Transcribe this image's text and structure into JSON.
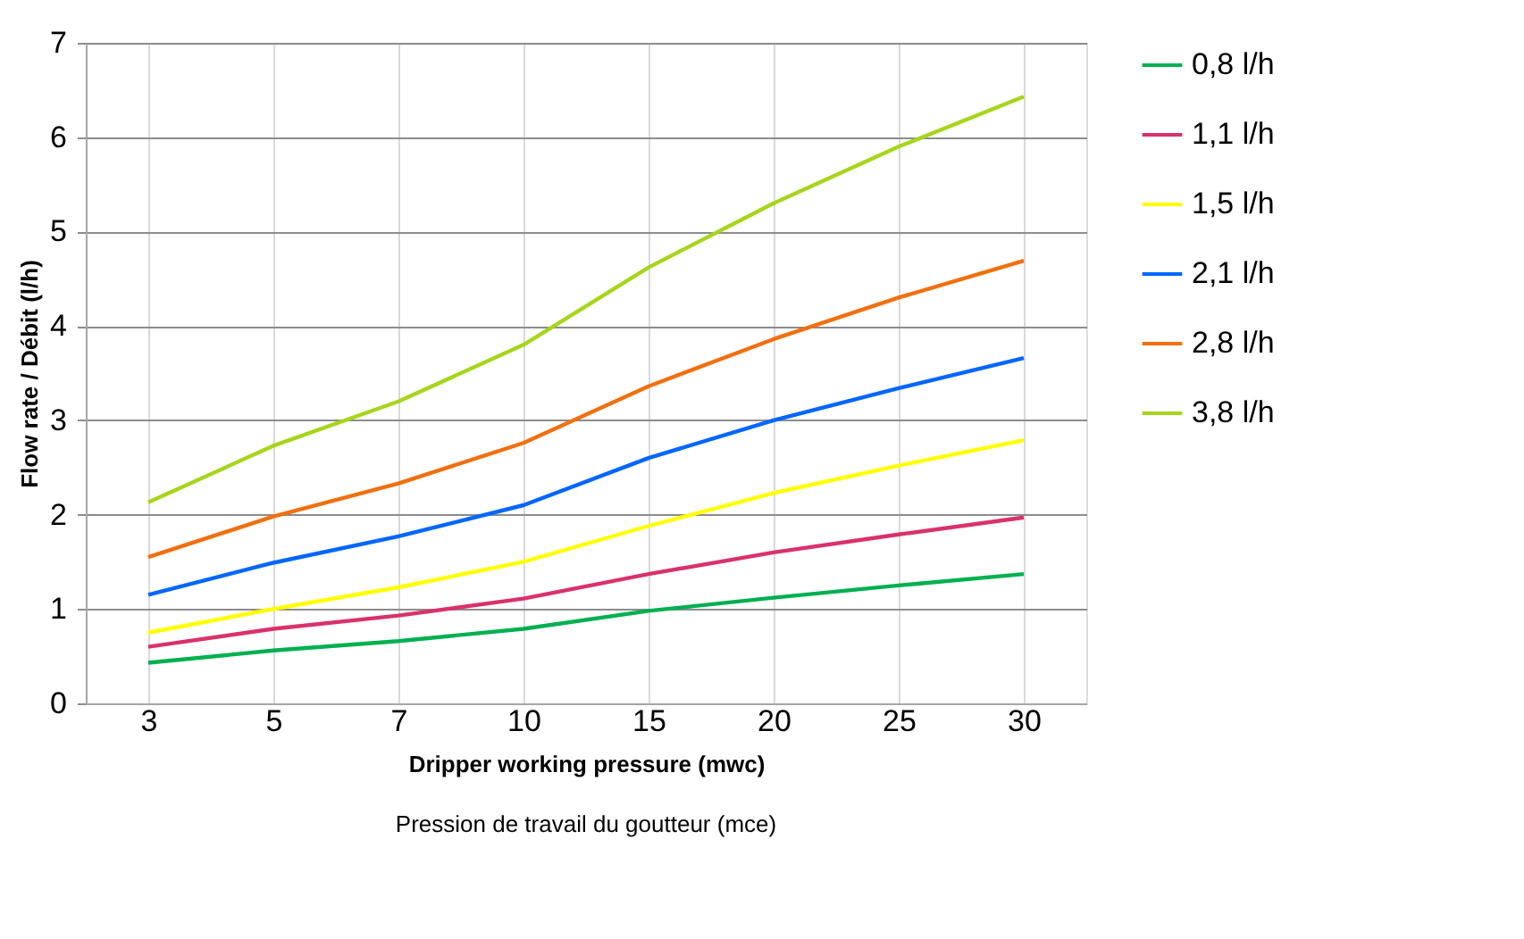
{
  "chart_data": {
    "type": "line",
    "categories": [
      "3",
      "5",
      "7",
      "10",
      "15",
      "20",
      "25",
      "30"
    ],
    "series": [
      {
        "name": "0,8 l/h",
        "color": "#00b050",
        "values": [
          0.43,
          0.56,
          0.66,
          0.79,
          0.98,
          1.12,
          1.25,
          1.37
        ]
      },
      {
        "name": "1,1 l/h",
        "color": "#d9326b",
        "values": [
          0.6,
          0.79,
          0.93,
          1.11,
          1.37,
          1.6,
          1.79,
          1.97
        ]
      },
      {
        "name": "1,5 l/h",
        "color": "#ffff00",
        "values": [
          0.75,
          1.0,
          1.23,
          1.5,
          1.88,
          2.23,
          2.52,
          2.79
        ]
      },
      {
        "name": "2,1 l/h",
        "color": "#0066ff",
        "values": [
          1.15,
          1.49,
          1.77,
          2.1,
          2.6,
          3.0,
          3.34,
          3.66
        ]
      },
      {
        "name": "2,8 l/h",
        "color": "#f07010",
        "values": [
          1.55,
          1.98,
          2.33,
          2.76,
          3.36,
          3.86,
          4.3,
          4.69
        ]
      },
      {
        "name": "3,8 l/h",
        "color": "#a6d61c",
        "values": [
          2.13,
          2.73,
          3.2,
          3.8,
          4.62,
          5.3,
          5.9,
          6.43
        ]
      }
    ],
    "xlabel": "Dripper working pressure (mwc)",
    "ylabel": "Flow rate / Débit (l/h)",
    "annotations": [
      "Pression de travail du goutteur (mce)"
    ],
    "ylim": [
      0,
      7
    ],
    "yticks": [
      0,
      1,
      2,
      3,
      4,
      5,
      6,
      7
    ],
    "grid": true,
    "legend": "right",
    "marker": "none",
    "line_style": "solid"
  }
}
